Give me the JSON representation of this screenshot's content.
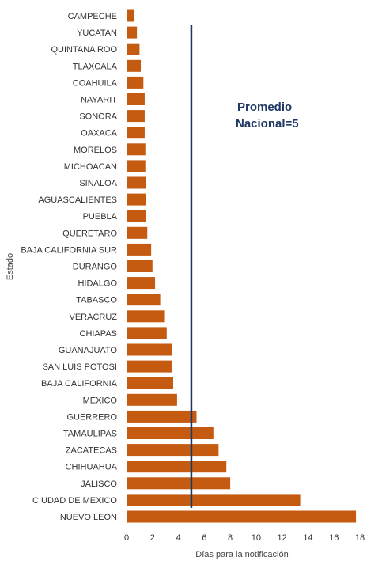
{
  "chart_data": {
    "type": "bar",
    "orientation": "horizontal",
    "categories": [
      "CAMPECHE",
      "YUCATAN",
      "QUINTANA ROO",
      "TLAXCALA",
      "COAHUILA",
      "NAYARIT",
      "SONORA",
      "OAXACA",
      "MORELOS",
      "MICHOACAN",
      "SINALOA",
      "AGUASCALIENTES",
      "PUEBLA",
      "QUERETARO",
      "BAJA CALIFORNIA SUR",
      "DURANGO",
      "HIDALGO",
      "TABASCO",
      "VERACRUZ",
      "CHIAPAS",
      "GUANAJUATO",
      "SAN  LUIS POTOSI",
      "BAJA CALIFORNIA",
      "MEXICO",
      "GUERRERO",
      "TAMAULIPAS",
      "ZACATECAS",
      "CHIHUAHUA",
      "JALISCO",
      "CIUDAD DE MEXICO",
      "NUEVO LEON"
    ],
    "values": [
      0.6,
      0.8,
      1.0,
      1.1,
      1.3,
      1.4,
      1.4,
      1.4,
      1.45,
      1.45,
      1.5,
      1.5,
      1.5,
      1.6,
      1.9,
      2.0,
      2.2,
      2.6,
      2.9,
      3.1,
      3.5,
      3.5,
      3.6,
      3.9,
      5.4,
      6.7,
      7.1,
      7.7,
      8.0,
      13.4,
      17.7
    ],
    "xlabel": "Días para la notificación",
    "ylabel": "Estado",
    "xlim": [
      0,
      18
    ],
    "xticks": [
      0,
      2,
      4,
      6,
      8,
      10,
      12,
      14,
      16,
      18
    ],
    "bar_color": "#c55a11",
    "reference_line": {
      "value": 5,
      "label_line1": "Promedio",
      "label_line2": "Nacional=5",
      "color": "#1f3864"
    },
    "grid": false,
    "legend": "none"
  }
}
